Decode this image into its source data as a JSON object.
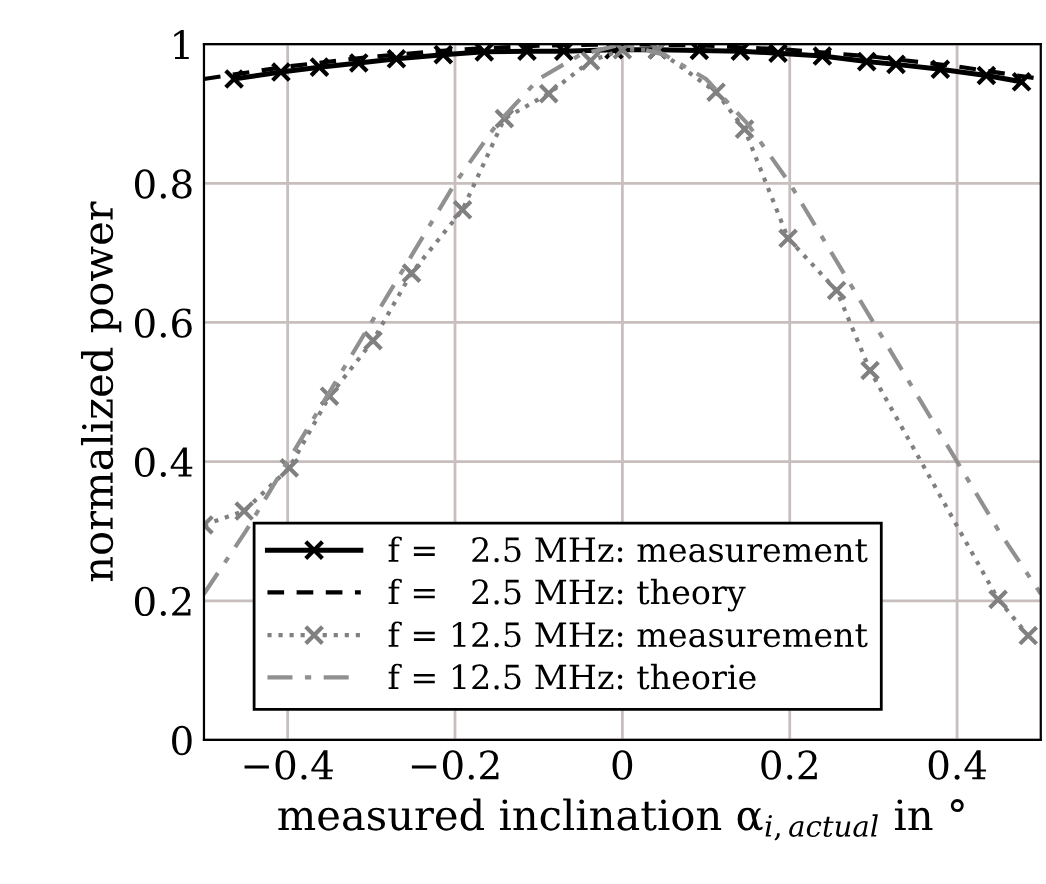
{
  "chart_data": {
    "type": "line",
    "xlabel": "measured inclination α$_{i,actual}$ in °",
    "ylabel": "normalized power",
    "xlim": [
      -0.5,
      0.5
    ],
    "ylim": [
      0,
      1
    ],
    "xticks": [
      {
        "value": -0.4,
        "label": "−0.4"
      },
      {
        "value": -0.2,
        "label": "−0.2"
      },
      0,
      0.2,
      0.4
    ],
    "yticks": [
      0,
      0.2,
      0.4,
      0.6,
      0.8,
      1
    ],
    "grid": true,
    "legend": "lower left",
    "series": [
      {
        "name": "f =   2.5 MHz: measurement",
        "color": "#000000",
        "line_style": "solid",
        "marker": "cross",
        "x": [
          -0.464,
          -0.408,
          -0.362,
          -0.315,
          -0.27,
          -0.214,
          -0.165,
          -0.114,
          -0.07,
          -0.01,
          0.042,
          0.092,
          0.141,
          0.186,
          0.239,
          0.292,
          0.327,
          0.38,
          0.435,
          0.477
        ],
        "values": [
          0.95,
          0.96,
          0.967,
          0.973,
          0.979,
          0.985,
          0.989,
          0.99,
          0.99,
          0.992,
          0.992,
          0.991,
          0.99,
          0.987,
          0.983,
          0.975,
          0.971,
          0.964,
          0.955,
          0.946
        ]
      },
      {
        "name": "f =   2.5 MHz: theory",
        "color": "#000000",
        "line_style": "dashed",
        "marker": "none",
        "x": [
          -0.5,
          -0.4,
          -0.3,
          -0.2,
          -0.1,
          0,
          0.1,
          0.2,
          0.3,
          0.4,
          0.5
        ],
        "values": [
          0.95,
          0.968,
          0.982,
          0.992,
          0.998,
          1,
          0.998,
          0.992,
          0.982,
          0.968,
          0.95
        ]
      },
      {
        "name": "f = 12.5 MHz: measurement",
        "color": "#808080",
        "line_style": "dotted",
        "marker": "cross",
        "x": [
          -0.5,
          -0.452,
          -0.398,
          -0.35,
          -0.298,
          -0.252,
          -0.191,
          -0.141,
          -0.088,
          -0.038,
          0,
          0.042,
          0.112,
          0.146,
          0.198,
          0.256,
          0.296,
          0.449,
          0.485
        ],
        "values": [
          0.309,
          0.329,
          0.391,
          0.494,
          0.574,
          0.671,
          0.762,
          0.893,
          0.929,
          0.976,
          0.992,
          0.992,
          0.931,
          0.878,
          0.721,
          0.646,
          0.531,
          0.202,
          0.15
        ]
      },
      {
        "name": "f = 12.5 MHz: theorie",
        "color": "#909090",
        "line_style": "dashdot",
        "marker": "none",
        "x": [
          -0.5,
          -0.45,
          -0.4,
          -0.35,
          -0.3,
          -0.25,
          -0.2,
          -0.15,
          -0.1,
          -0.05,
          0,
          0.05,
          0.1,
          0.15,
          0.2,
          0.25,
          0.3,
          0.35,
          0.4,
          0.45,
          0.5
        ],
        "values": [
          0.21,
          0.3,
          0.4,
          0.5,
          0.6,
          0.7,
          0.8,
          0.885,
          0.95,
          0.985,
          1,
          0.985,
          0.95,
          0.885,
          0.8,
          0.7,
          0.6,
          0.5,
          0.4,
          0.3,
          0.21
        ]
      }
    ]
  }
}
